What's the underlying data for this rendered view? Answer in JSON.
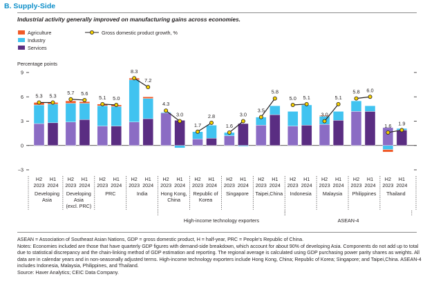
{
  "section_title": "B. Supply-Side",
  "subtitle": "Industrial activity generally improved on manufacturing gains across economies.",
  "legend": {
    "agriculture": "Agriculture",
    "industry": "Industry",
    "services": "Services",
    "gdp": "Gross domestic product growth, %"
  },
  "colors": {
    "agriculture": "#f05a28",
    "industry": "#41c3f0",
    "services": "#8b6cc4",
    "services_alt": "#5a2d82",
    "gdp_line": "#231f20",
    "gdp_marker": "#f5d000"
  },
  "chart_data": {
    "type": "bar",
    "ylabel": "Percentage points",
    "ylim": [
      -3,
      9
    ],
    "yticks": [
      -3,
      0,
      3,
      6,
      9
    ],
    "grid": false,
    "legend_position": "top-left",
    "stacked": true,
    "periods": [
      "H2 2023",
      "H1 2024"
    ],
    "categories": [
      "Developing Asia",
      "Developing Asia (excl. PRC)",
      "PRC",
      "India",
      "Hong Kong, China",
      "Republic of Korea",
      "Singapore",
      "Taipei,China",
      "Indonesia",
      "Malaysia",
      "Philippines",
      "Thailand"
    ],
    "series": [
      {
        "name": "Agriculture",
        "values": [
          [
            0.3,
            0.2
          ],
          [
            0.3,
            0.2
          ],
          [
            0.2,
            0.2
          ],
          [
            0.2,
            0.2
          ],
          [
            0.0,
            0.0
          ],
          [
            0.0,
            0.0
          ],
          [
            0.0,
            0.0
          ],
          [
            0.0,
            0.0
          ],
          [
            0.0,
            0.0
          ],
          [
            0.1,
            0.0
          ],
          [
            0.0,
            0.0
          ],
          [
            -0.3,
            0.0
          ]
        ]
      },
      {
        "name": "Industry",
        "values": [
          [
            2.3,
            2.3
          ],
          [
            2.3,
            2.0
          ],
          [
            2.5,
            2.4
          ],
          [
            5.2,
            2.5
          ],
          [
            0.1,
            -0.3
          ],
          [
            0.9,
            1.6
          ],
          [
            0.4,
            -0.1
          ],
          [
            1.0,
            1.1
          ],
          [
            1.8,
            2.5
          ],
          [
            1.0,
            1.1
          ],
          [
            1.3,
            0.7
          ],
          [
            -0.5,
            0.2
          ]
        ]
      },
      {
        "name": "Services",
        "values": [
          [
            2.7,
            2.8
          ],
          [
            2.9,
            3.2
          ],
          [
            2.4,
            2.4
          ],
          [
            2.9,
            3.3
          ],
          [
            4.0,
            3.1
          ],
          [
            0.8,
            0.9
          ],
          [
            1.2,
            2.7
          ],
          [
            2.5,
            3.8
          ],
          [
            2.4,
            2.5
          ],
          [
            2.6,
            3.1
          ],
          [
            4.2,
            4.2
          ],
          [
            2.2,
            1.9
          ]
        ]
      }
    ],
    "gdp_growth": [
      [
        5.3,
        5.3
      ],
      [
        5.7,
        5.6
      ],
      [
        5.1,
        5.0
      ],
      [
        8.3,
        7.2
      ],
      [
        4.3,
        3.0
      ],
      [
        1.7,
        2.8
      ],
      [
        1.6,
        3.0
      ],
      [
        3.5,
        5.8
      ],
      [
        5.0,
        5.1
      ],
      [
        3.0,
        5.1
      ],
      [
        5.8,
        6.0
      ],
      [
        1.6,
        1.9
      ]
    ],
    "gdp_labels": [
      [
        "5.3",
        "5.3"
      ],
      [
        "5.7",
        "5.6"
      ],
      [
        "5.1",
        "5.0"
      ],
      [
        "8.3",
        "7.2"
      ],
      [
        "4.3",
        "3.0"
      ],
      [
        "1.7",
        "2.8"
      ],
      [
        "1.6",
        "3.0"
      ],
      [
        "3.5",
        "5.8"
      ],
      [
        "5.0",
        "5.1"
      ],
      [
        "3.0",
        "5.1"
      ],
      [
        "5.8",
        "6.0"
      ],
      [
        "1.6",
        "1.9"
      ]
    ],
    "x_period_labels": [
      [
        "H2",
        "2023"
      ],
      [
        "H1",
        "2024"
      ]
    ],
    "x_category_labels": [
      [
        "Developing",
        "Asia"
      ],
      [
        "Developing",
        "Asia",
        "(excl. PRC)"
      ],
      [
        "PRC"
      ],
      [
        "India"
      ],
      [
        "Hong Kong,",
        "China"
      ],
      [
        "Republic of",
        "Korea"
      ],
      [
        "Singapore"
      ],
      [
        "Taipei,China"
      ],
      [
        "Indonesia"
      ],
      [
        "Malaysia"
      ],
      [
        "Philippines"
      ],
      [
        "Thailand"
      ]
    ],
    "groups": [
      {
        "label": "High-income technology exporters",
        "members": [
          "Hong Kong, China",
          "Republic of Korea",
          "Singapore",
          "Taipei,China"
        ]
      },
      {
        "label": "ASEAN-4",
        "members": [
          "Indonesia",
          "Malaysia",
          "Philippines",
          "Thailand"
        ]
      }
    ]
  },
  "notes": {
    "abbreviations": "ASEAN = Association of Southeast Asian Nations, GDP = gross domestic product, H = half-year, PRC = People's Republic of China.",
    "notes_text": "Notes: Economies included are those that have quarterly GDP figures with demand-side breakdown, which account for about 90% of developing Asia. Components do not add up to total due to statistical discrepancy and the chain-linking method of GDP estimation and reporting. The regional average is calculated using GDP purchasing power parity shares as weights. All data are in calendar years and in non-seasonally adjusted terms. High-income technology exporters include Hong Kong, China; Republic of Korea; Singapore; and Taipei,China. ASEAN-4 includes Indonesia, Malaysia, Philippines, and Thailand.",
    "source": "Source: Haver Analytics; CEIC Data Company."
  }
}
